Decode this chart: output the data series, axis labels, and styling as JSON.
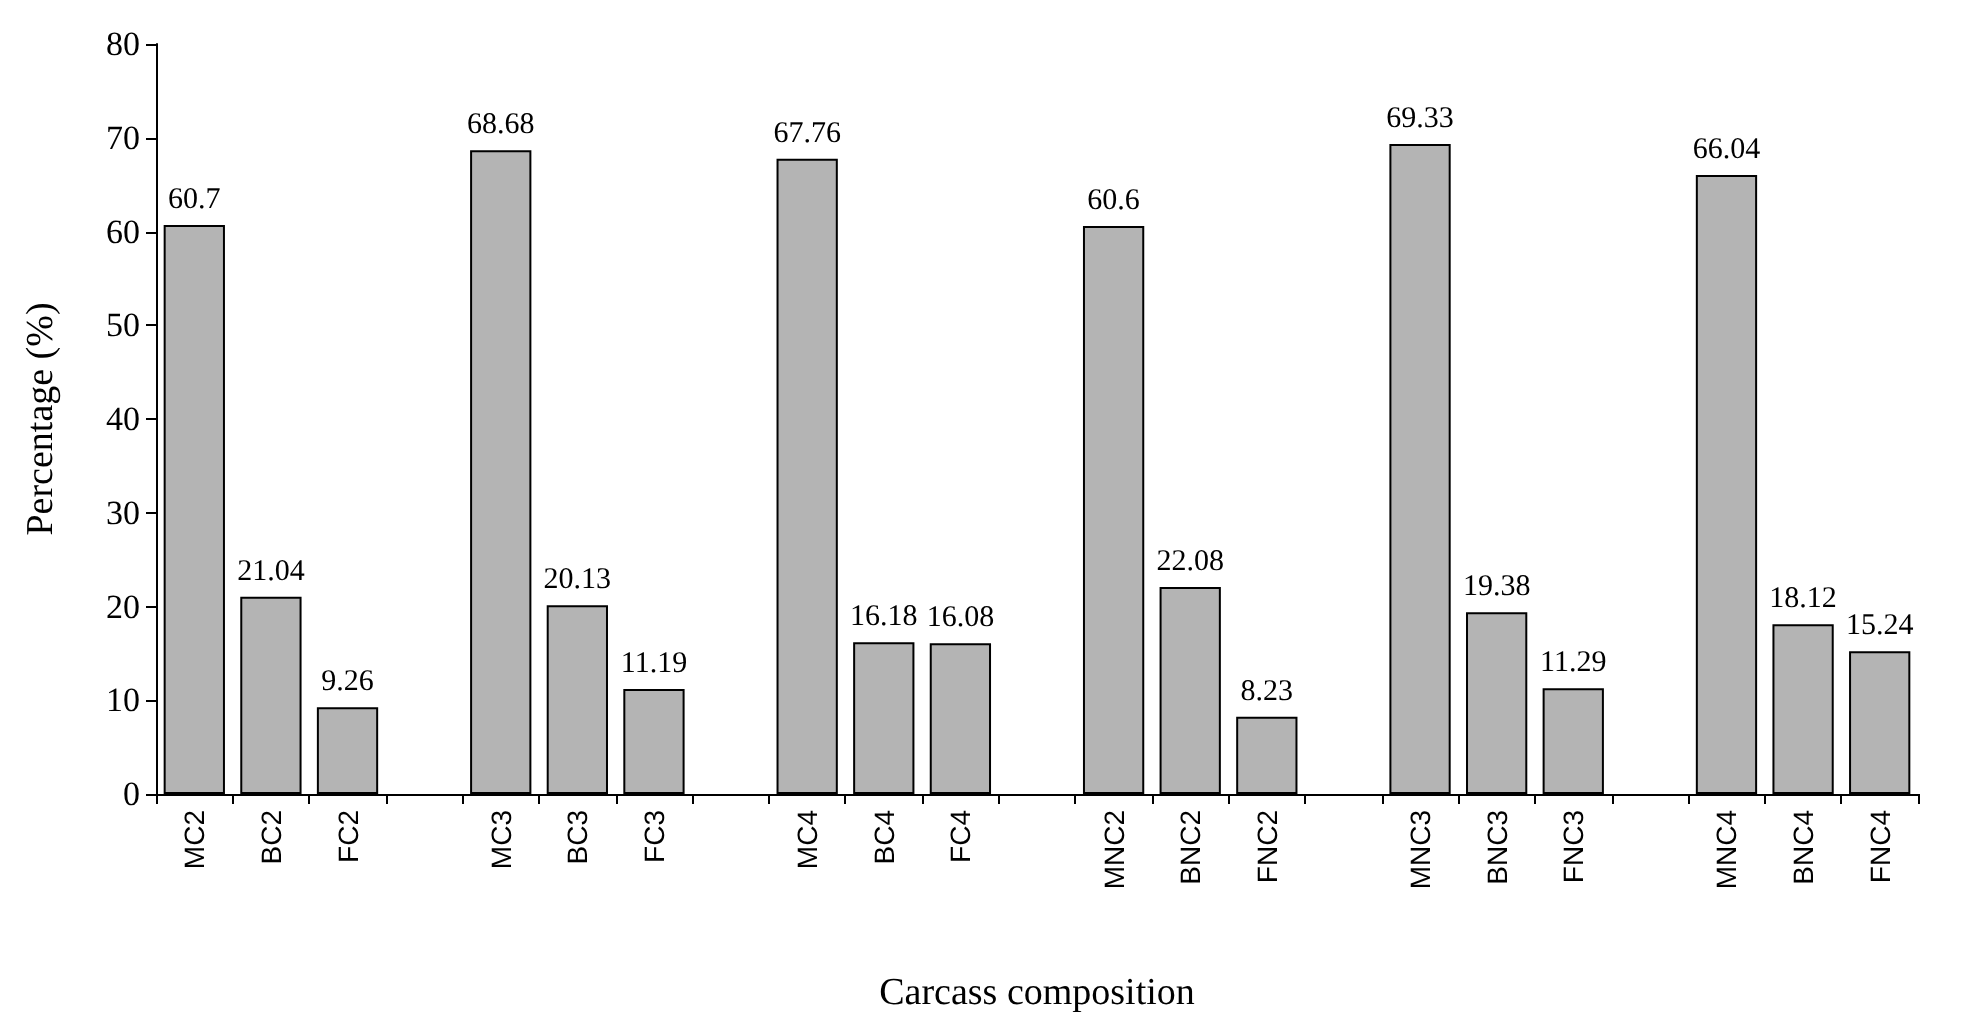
{
  "chart_data": {
    "type": "bar",
    "xlabel": "Carcass composition",
    "ylabel": "Percentage (%)",
    "categories": [
      "MC2",
      "BC2",
      "FC2",
      null,
      "MC3",
      "BC3",
      "FC3",
      null,
      "MC4",
      "BC4",
      "FC4",
      null,
      "MNC2",
      "BNC2",
      "FNC2",
      null,
      "MNC3",
      "BNC3",
      "FNC3",
      null,
      "MNC4",
      "BNC4",
      "FNC4"
    ],
    "values": [
      60.7,
      21.04,
      9.26,
      null,
      68.68,
      20.13,
      11.19,
      null,
      67.76,
      16.18,
      16.08,
      null,
      60.6,
      22.08,
      8.23,
      null,
      69.33,
      19.38,
      11.29,
      null,
      66.04,
      18.12,
      15.24
    ],
    "color": "#b4b4b4",
    "ylim": [
      0,
      80
    ],
    "yticks": [
      0,
      10,
      20,
      30,
      40,
      50,
      60,
      70,
      80
    ],
    "grid": false,
    "data_labels": true
  }
}
